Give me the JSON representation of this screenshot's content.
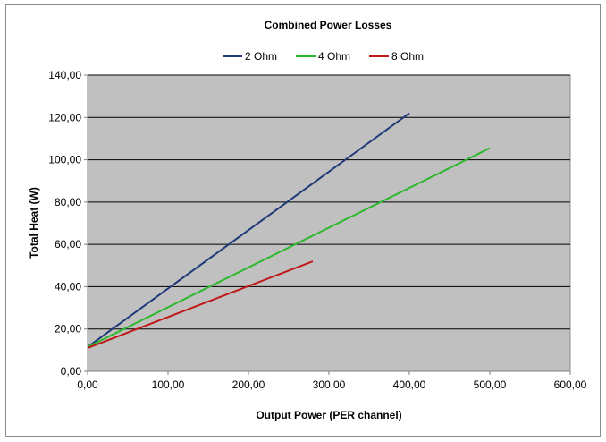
{
  "chart_data": {
    "type": "line",
    "title": "Combined  Power Losses",
    "xlabel": "Output Power (PER channel)",
    "ylabel": "Total Heat (W)",
    "xlim": [
      0,
      600
    ],
    "ylim": [
      0,
      140
    ],
    "x_ticks": [
      0,
      100,
      200,
      300,
      400,
      500,
      600
    ],
    "y_ticks": [
      0,
      20,
      40,
      60,
      80,
      100,
      120,
      140
    ],
    "x_tick_labels": [
      "0,00",
      "100,00",
      "200,00",
      "300,00",
      "400,00",
      "500,00",
      "600,00"
    ],
    "y_tick_labels": [
      "0,00",
      "20,00",
      "40,00",
      "60,00",
      "80,00",
      "100,00",
      "120,00",
      "140,00"
    ],
    "grid": "horizontal",
    "legend_position": "top",
    "plot_background": "#c0c0c0",
    "series": [
      {
        "name": "2 Ohm",
        "color": "#1f3a78",
        "points": [
          [
            0,
            11.5
          ],
          [
            400,
            122
          ]
        ]
      },
      {
        "name": "4 Ohm",
        "color": "#2db82d",
        "points": [
          [
            0,
            11.5
          ],
          [
            500,
            105.5
          ]
        ]
      },
      {
        "name": "8 Ohm",
        "color": "#c01818",
        "points": [
          [
            0,
            11
          ],
          [
            280,
            52
          ]
        ]
      }
    ]
  }
}
